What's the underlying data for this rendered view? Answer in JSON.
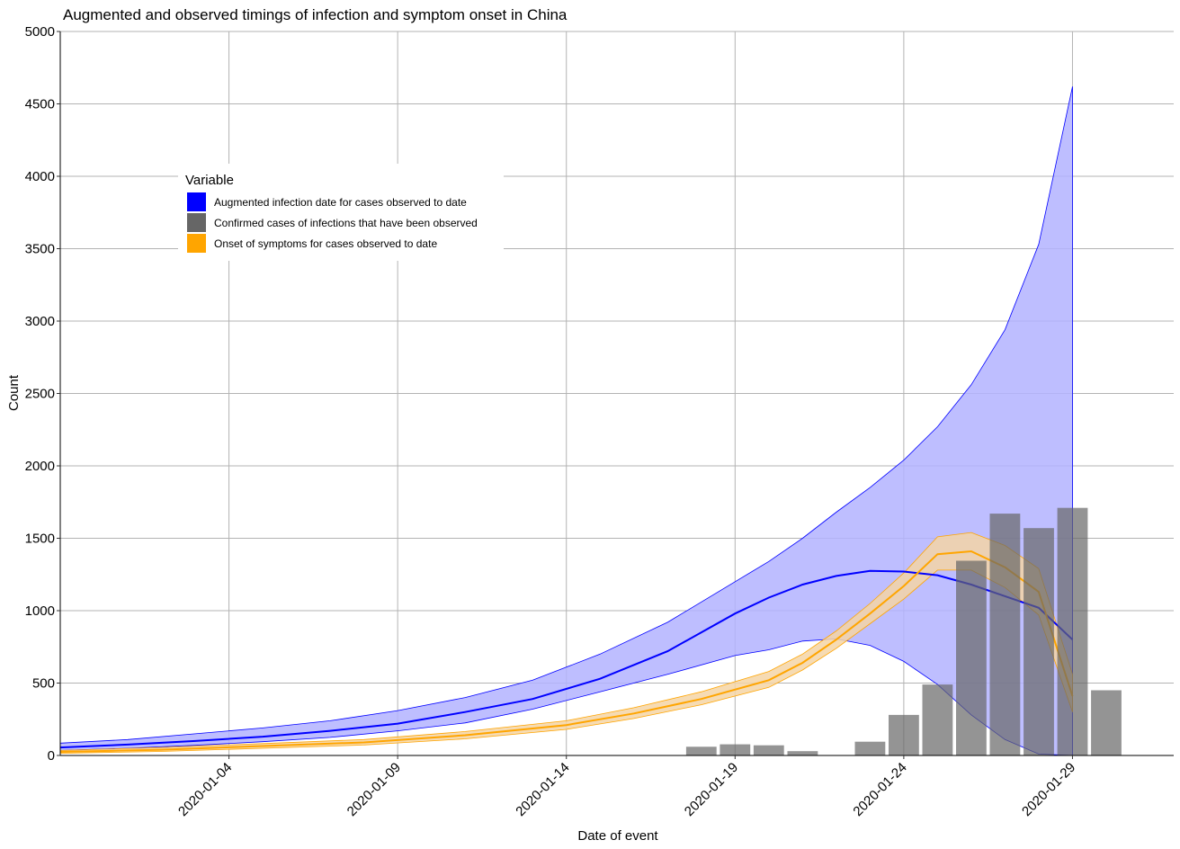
{
  "chart_data": {
    "type": "line",
    "title": "Augmented and observed timings of infection and symptom onset in China",
    "xlabel": "Date of event",
    "ylabel": "Count",
    "ylim": [
      0,
      5000
    ],
    "yticks": [
      0,
      500,
      1000,
      1500,
      2000,
      2500,
      3000,
      3500,
      4000,
      4500,
      5000
    ],
    "xticks": [
      "2020-01-04",
      "2020-01-09",
      "2020-01-14",
      "2020-01-19",
      "2020-01-24",
      "2020-01-29"
    ],
    "xlim": [
      "2019-12-30",
      "2020-02-01"
    ],
    "grid": true,
    "legend": {
      "title": "Variable",
      "placement": "top-left",
      "entries": [
        {
          "label": "Augmented infection date for cases observed to date",
          "color": "#0000ff"
        },
        {
          "label": "Confirmed cases of infections that have been observed",
          "color": "#666666"
        },
        {
          "label": "Onset of symptoms for cases observed to date",
          "color": "#ffa500"
        }
      ]
    },
    "series": [
      {
        "name": "Augmented infection date for cases observed to date",
        "kind": "line-with-ribbon",
        "color": "#0000ff",
        "fill": "#b3b3ff",
        "x": [
          "2019-12-30",
          "2020-01-01",
          "2020-01-03",
          "2020-01-05",
          "2020-01-07",
          "2020-01-09",
          "2020-01-11",
          "2020-01-13",
          "2020-01-15",
          "2020-01-17",
          "2020-01-19",
          "2020-01-20",
          "2020-01-21",
          "2020-01-22",
          "2020-01-23",
          "2020-01-24",
          "2020-01-25",
          "2020-01-26",
          "2020-01-27",
          "2020-01-28",
          "2020-01-29"
        ],
        "y": [
          55,
          75,
          100,
          130,
          170,
          220,
          300,
          390,
          530,
          720,
          980,
          1090,
          1180,
          1240,
          1275,
          1270,
          1245,
          1180,
          1100,
          1020,
          800
        ],
        "lower": [
          35,
          50,
          70,
          95,
          125,
          170,
          225,
          320,
          440,
          560,
          690,
          730,
          790,
          805,
          760,
          650,
          490,
          280,
          110,
          10,
          0
        ],
        "upper": [
          85,
          110,
          150,
          190,
          240,
          310,
          400,
          520,
          700,
          920,
          1200,
          1340,
          1500,
          1680,
          1850,
          2040,
          2270,
          2560,
          2940,
          3530,
          4620
        ]
      },
      {
        "name": "Onset of symptoms for cases observed to date",
        "kind": "line-with-ribbon",
        "color": "#ffa500",
        "fill": "#f5d5a6",
        "x": [
          "2019-12-30",
          "2020-01-02",
          "2020-01-05",
          "2020-01-08",
          "2020-01-11",
          "2020-01-14",
          "2020-01-16",
          "2020-01-18",
          "2020-01-20",
          "2020-01-21",
          "2020-01-22",
          "2020-01-23",
          "2020-01-24",
          "2020-01-25",
          "2020-01-26",
          "2020-01-27",
          "2020-01-28",
          "2020-01-29"
        ],
        "y": [
          25,
          40,
          65,
          90,
          140,
          210,
          290,
          390,
          520,
          640,
          800,
          980,
          1170,
          1390,
          1410,
          1300,
          1130,
          410
        ],
        "lower": [
          15,
          28,
          50,
          72,
          115,
          180,
          255,
          350,
          470,
          590,
          740,
          910,
          1080,
          1280,
          1280,
          1160,
          970,
          300
        ],
        "upper": [
          35,
          55,
          82,
          110,
          165,
          240,
          330,
          440,
          580,
          700,
          860,
          1050,
          1260,
          1510,
          1540,
          1450,
          1290,
          560
        ]
      },
      {
        "name": "Confirmed cases of infections that have been observed",
        "kind": "bar",
        "color": "#666666",
        "x": [
          "2020-01-18",
          "2020-01-19",
          "2020-01-20",
          "2020-01-21",
          "2020-01-23",
          "2020-01-24",
          "2020-01-25",
          "2020-01-26",
          "2020-01-27",
          "2020-01-28",
          "2020-01-29",
          "2020-01-30"
        ],
        "y": [
          60,
          77,
          70,
          30,
          95,
          280,
          490,
          1345,
          1670,
          1570,
          1710,
          450
        ]
      }
    ]
  }
}
